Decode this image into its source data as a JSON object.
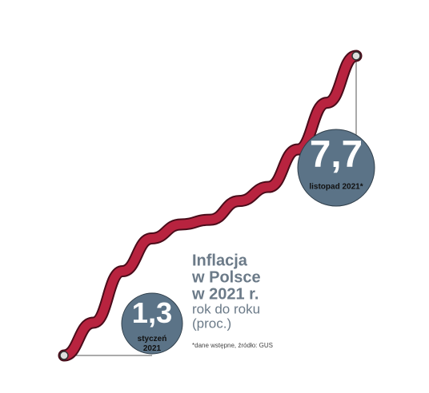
{
  "chart_data": {
    "type": "line",
    "categories": [
      null,
      null,
      null,
      null,
      null,
      null,
      null,
      null,
      null,
      null,
      null
    ],
    "series": [
      {
        "color": "#b8233f",
        "values": [
          1.3,
          2.0,
          3.1,
          3.8,
          4.1,
          4.2,
          4.6,
          4.9,
          5.7,
          6.7,
          7.7
        ],
        "value_labels": [
          "1,3",
          null,
          null,
          null,
          null,
          null,
          null,
          null,
          null,
          null,
          "7,7"
        ]
      }
    ],
    "ylim": [
      1,
      8
    ],
    "point_labels": [
      "styczeń 2021",
      "listopad 2021*"
    ],
    "title_lines": [
      "Inflacja",
      "w Polsce",
      "w 2021 r."
    ],
    "subtitle_lines": [
      "rok do roku",
      "(proc.)"
    ],
    "note": "*dane wstępne, źródło: GUS"
  }
}
